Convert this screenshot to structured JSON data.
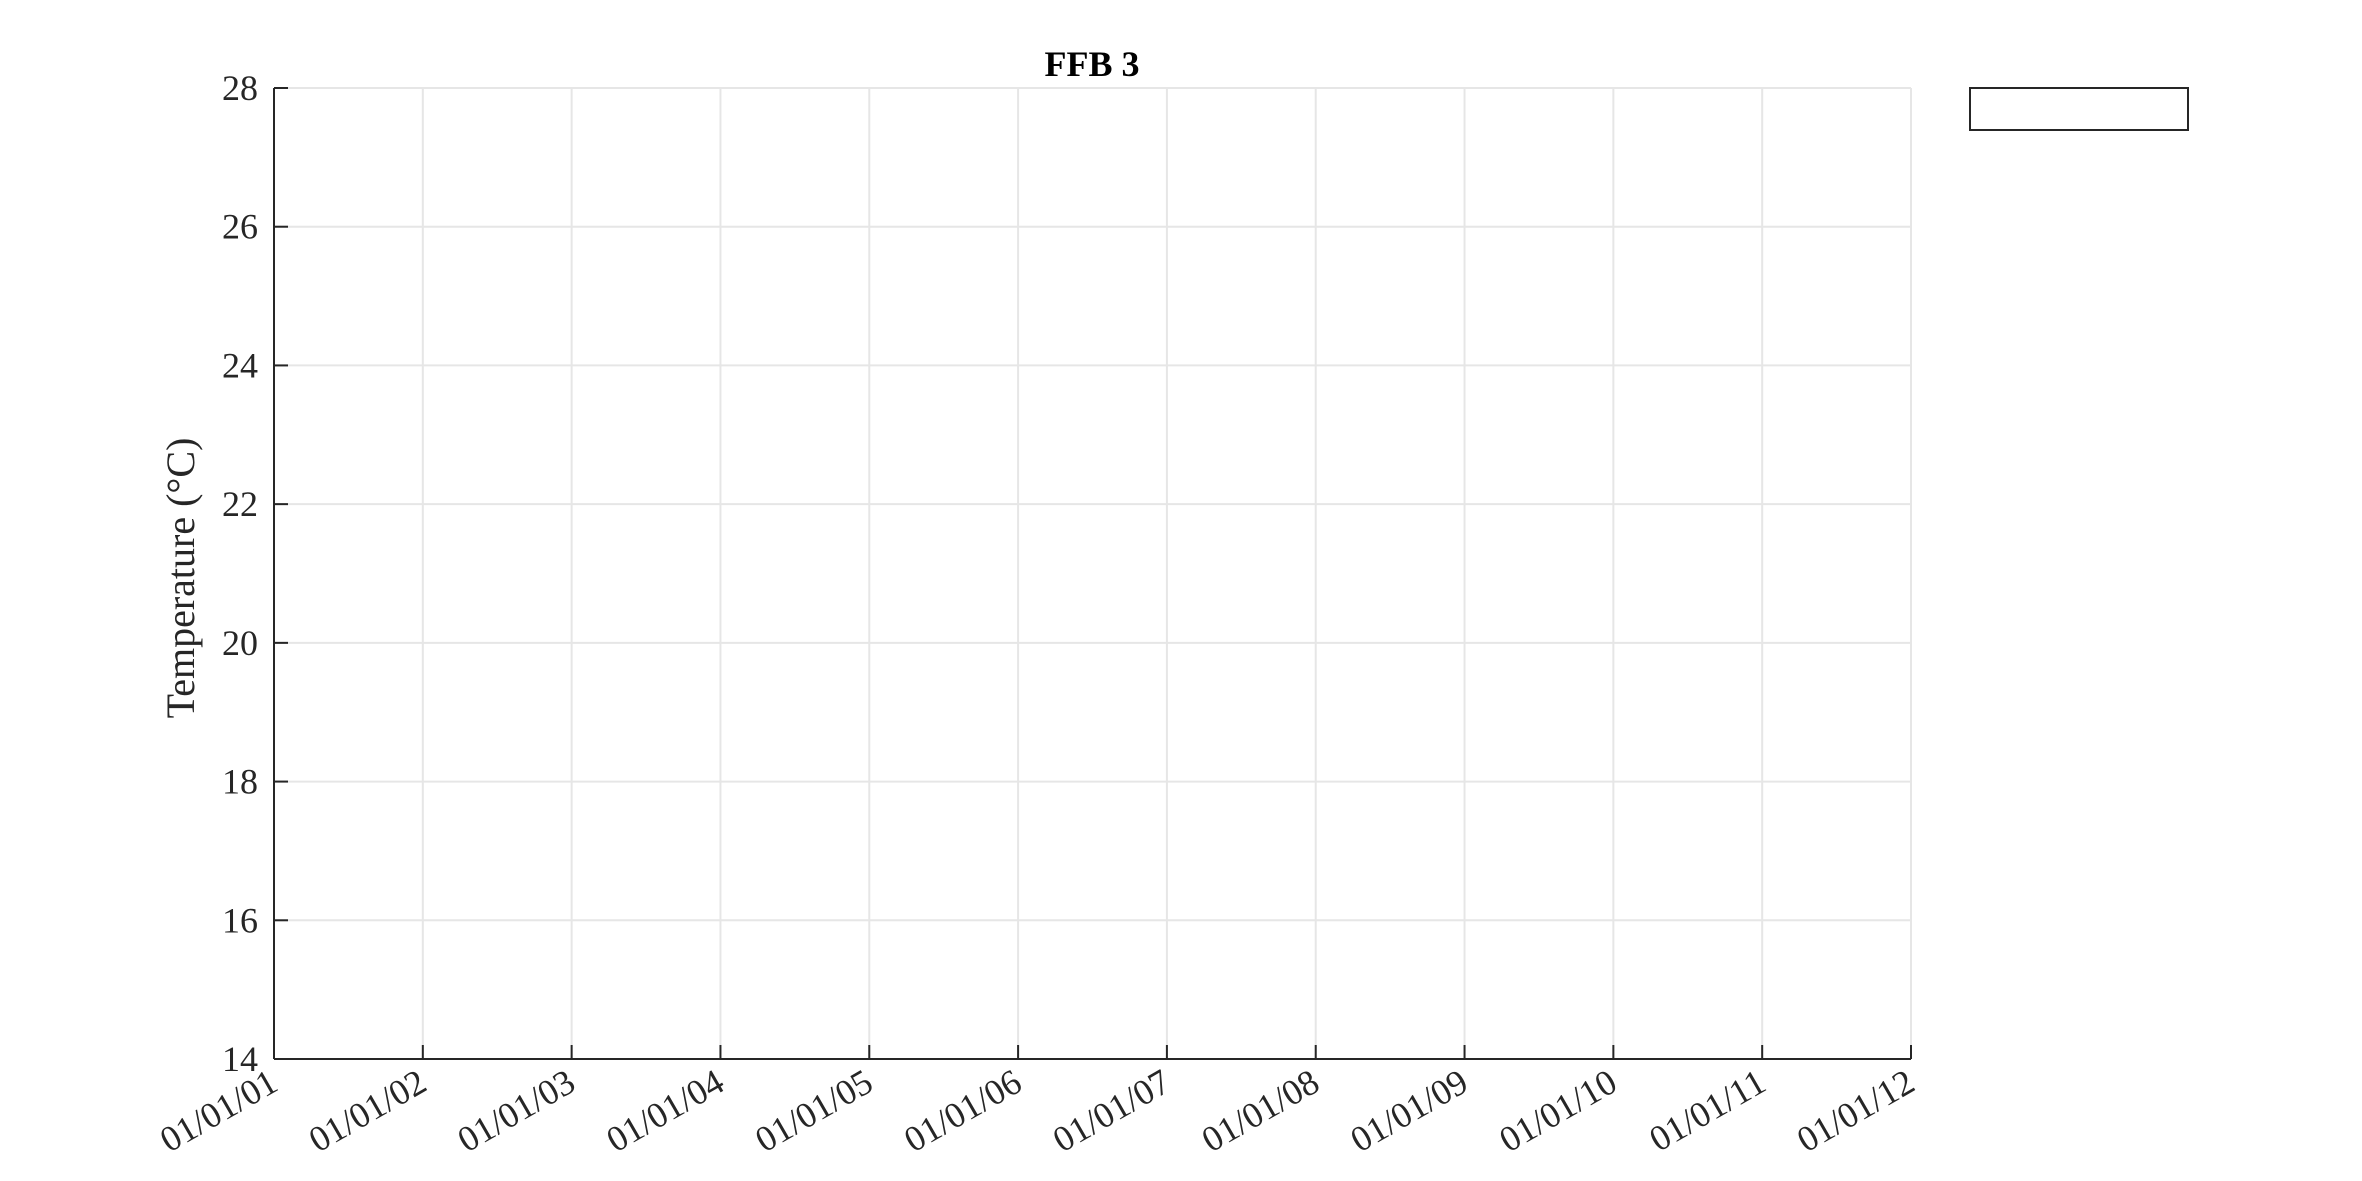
{
  "chart_data": {
    "type": "line",
    "title": "FFB 3",
    "xlabel": "",
    "ylabel": "Temperature (°C)",
    "x_tick_labels": [
      "01/01/01",
      "01/01/02",
      "01/01/03",
      "01/01/04",
      "01/01/05",
      "01/01/06",
      "01/01/07",
      "01/01/08",
      "01/01/09",
      "01/01/10",
      "01/01/11",
      "01/01/12"
    ],
    "y_ticks": [
      14,
      16,
      18,
      20,
      22,
      24,
      26,
      28
    ],
    "ylim": [
      14,
      28
    ],
    "grid": true,
    "legend": {
      "position": "top-right-outside",
      "entries": []
    },
    "series": [],
    "colors": {
      "axis": "#262626",
      "grid": "#e6e6e6",
      "background": "#ffffff"
    }
  }
}
